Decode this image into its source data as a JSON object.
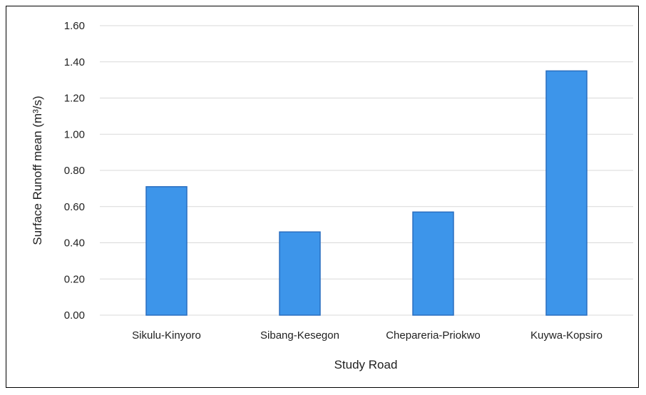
{
  "chart_data": {
    "type": "bar",
    "title": "",
    "xlabel": "Study Road",
    "ylabel": "Surface Runoff mean (m³/s)",
    "categories": [
      "Sikulu-Kinyoro",
      "Sibang-Kesegon",
      "Chepareria-Priokwo",
      "Kuywa-Kopsiro"
    ],
    "values": [
      0.71,
      0.46,
      0.57,
      1.35
    ],
    "ylim": [
      0,
      1.6
    ],
    "yticks": [
      "0.00",
      "0.20",
      "0.40",
      "0.60",
      "0.80",
      "1.00",
      "1.20",
      "1.40",
      "1.60"
    ],
    "grid": true,
    "legend": "none",
    "colors": {
      "bar_fill": "#3d95ea",
      "bar_stroke": "#2a6fc0",
      "grid": "#d9d9d9"
    }
  }
}
